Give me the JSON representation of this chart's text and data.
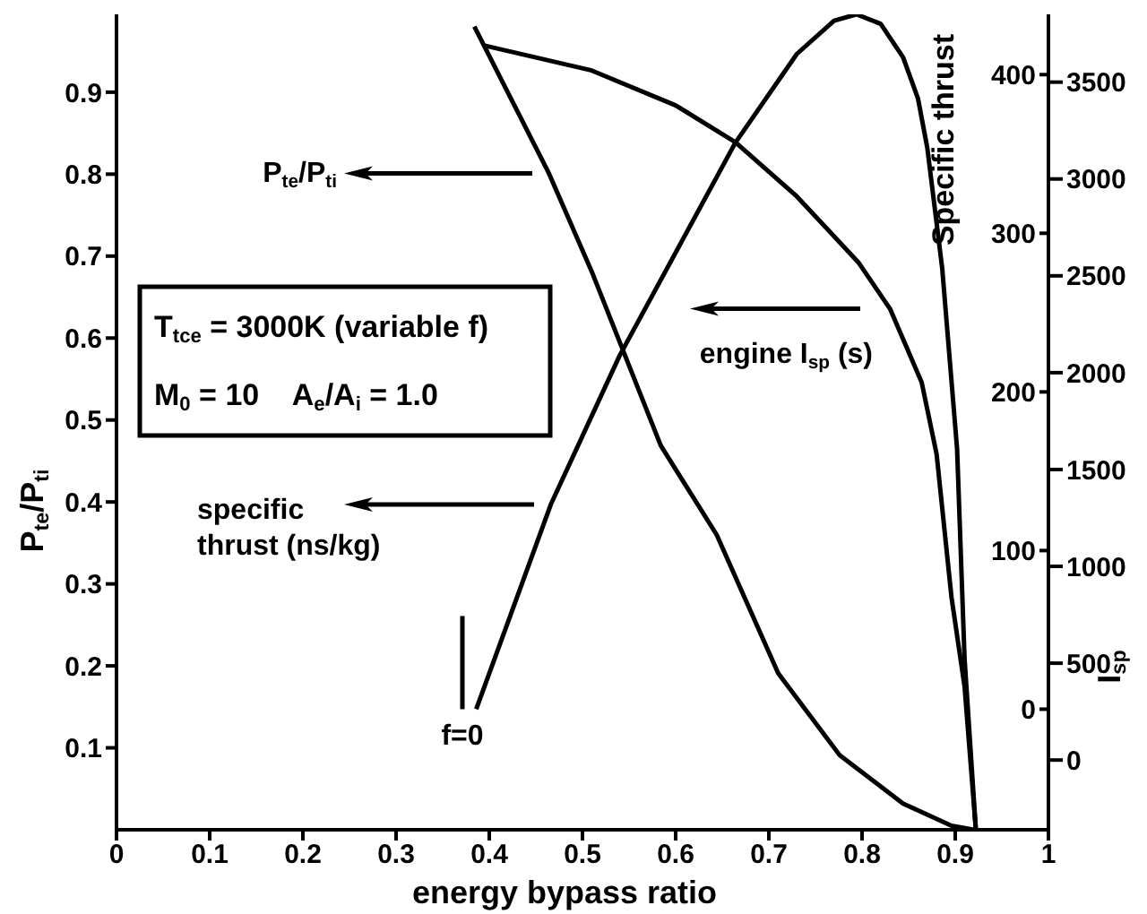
{
  "chart_data": {
    "type": "line",
    "xlabel": "energy bypass ratio",
    "ylabel": "P$_{te}$/P$_{ti}$",
    "y2label": "Specific thrust",
    "y3label": "I$_{sp}$",
    "xlim": [
      0,
      1
    ],
    "xticks": [
      0,
      0.1,
      0.2,
      0.3,
      0.4,
      0.5,
      0.6,
      0.7,
      0.8,
      0.9,
      1
    ],
    "ylim": [
      0,
      0.995
    ],
    "yticks": [
      0.1,
      0.2,
      0.3,
      0.4,
      0.5,
      0.6,
      0.7,
      0.8,
      0.9
    ],
    "y2lim": [
      -76,
      438
    ],
    "y2ticks": [
      0,
      100,
      200,
      300,
      400
    ],
    "y3lim": [
      -360,
      3850
    ],
    "y3ticks": [
      0,
      500,
      1000,
      1500,
      2000,
      2500,
      3000,
      3500
    ],
    "marker": "none",
    "line_style": "solid",
    "series": [
      {
        "name": "P$_{te}$/P$_{ti}$",
        "color": "#000000",
        "x": [
          0.384,
          0.464,
          0.51,
          0.584,
          0.596,
          0.644,
          0.71,
          0.776,
          0.844,
          0.896,
          0.92
        ],
        "values": [
          0.98,
          0.801,
          0.681,
          0.469,
          0.447,
          0.36,
          0.191,
          0.091,
          0.032,
          0.005,
          0
        ]
      },
      {
        "name": "specific thrust (ns/kg)",
        "axis": "y2",
        "color": "#000000",
        "x": [
          0.386,
          0.466,
          0.54,
          0.664,
          0.73,
          0.77,
          0.794,
          0.82,
          0.844,
          0.86,
          0.87,
          0.886,
          0.902,
          0.91,
          0.922
        ],
        "values": [
          0,
          129,
          223,
          357,
          413,
          434,
          438,
          432,
          411,
          385,
          354,
          278,
          164,
          32,
          -75
        ]
      },
      {
        "name": "engine I$_{sp}$ (s)",
        "axis": "y3",
        "color": "#000000",
        "x": [
          0.394,
          0.51,
          0.6,
          0.664,
          0.73,
          0.796,
          0.83,
          0.864,
          0.88,
          0.896,
          0.91,
          0.922
        ],
        "values": [
          3690,
          3560,
          3380,
          3190,
          2910,
          2570,
          2330,
          1950,
          1580,
          840,
          380,
          -350
        ]
      }
    ],
    "annotations": [
      "T$_{tce}$ = 3000K (variable f)",
      "M$_{0}$ = 10    A$_{e}$/A$_{i}$ = 1.0",
      "f=0"
    ]
  }
}
